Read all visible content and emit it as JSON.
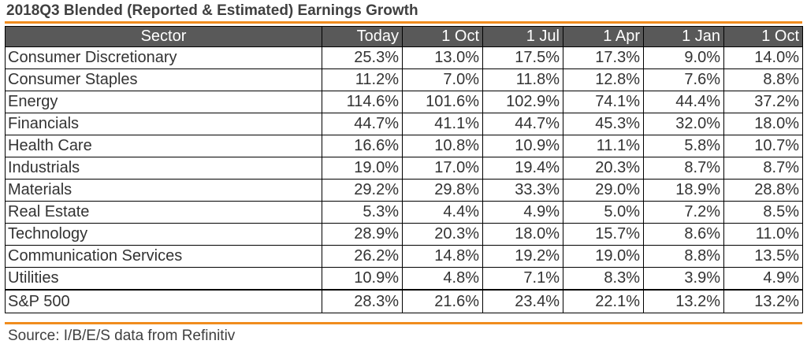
{
  "title": "2018Q3 Blended (Reported & Estimated) Earnings Growth",
  "source": "Source: I/B/E/S data from Refinitiv",
  "colors": {
    "accent_rule": "#F08C1E",
    "header_bg": "#595959",
    "header_text": "#FFFFFF"
  },
  "chart_data": {
    "type": "table",
    "title": "2018Q3 Blended (Reported & Estimated) Earnings Growth",
    "columns": [
      "Sector",
      "Today",
      "1 Oct",
      "1 Jul",
      "1 Apr",
      "1 Jan",
      "1 Oct"
    ],
    "rows": [
      [
        "Consumer Discretionary",
        "25.3%",
        "13.0%",
        "17.5%",
        "17.3%",
        "9.0%",
        "14.0%"
      ],
      [
        "Consumer Staples",
        "11.2%",
        "7.0%",
        "11.8%",
        "12.8%",
        "7.6%",
        "8.8%"
      ],
      [
        "Energy",
        "114.6%",
        "101.6%",
        "102.9%",
        "74.1%",
        "44.4%",
        "37.2%"
      ],
      [
        "Financials",
        "44.7%",
        "41.1%",
        "44.7%",
        "45.3%",
        "32.0%",
        "18.0%"
      ],
      [
        "Health Care",
        "16.6%",
        "10.8%",
        "10.9%",
        "11.1%",
        "5.8%",
        "10.7%"
      ],
      [
        "Industrials",
        "19.0%",
        "17.0%",
        "19.4%",
        "20.3%",
        "8.7%",
        "8.7%"
      ],
      [
        "Materials",
        "29.2%",
        "29.8%",
        "33.3%",
        "29.0%",
        "18.9%",
        "28.8%"
      ],
      [
        "Real Estate",
        "5.3%",
        "4.4%",
        "4.9%",
        "5.0%",
        "7.2%",
        "8.5%"
      ],
      [
        "Technology",
        "28.9%",
        "20.3%",
        "18.0%",
        "15.7%",
        "8.6%",
        "11.0%"
      ],
      [
        "Communication Services",
        "26.2%",
        "14.8%",
        "19.2%",
        "19.0%",
        "8.8%",
        "13.5%"
      ],
      [
        "Utilities",
        "10.9%",
        "4.8%",
        "7.1%",
        "8.3%",
        "3.9%",
        "4.9%"
      ],
      [
        "S&P 500",
        "28.3%",
        "21.6%",
        "23.4%",
        "22.1%",
        "13.2%",
        "13.2%"
      ]
    ]
  }
}
